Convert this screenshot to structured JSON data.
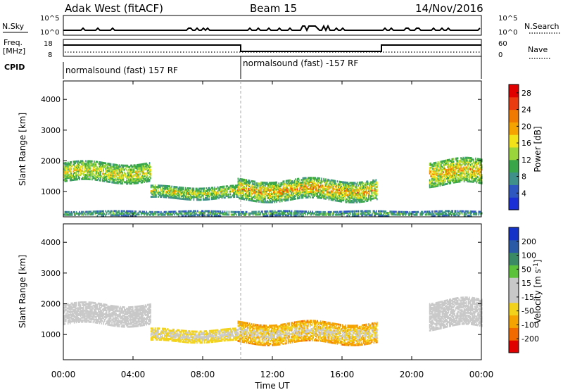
{
  "header": {
    "station": "Adak West (fitACF)",
    "beam": "Beam 15",
    "date": "14/Nov/2016"
  },
  "strip_labels": {
    "nsky": "N.Sky",
    "nsearch": "N.Search",
    "freq_line1": "Freq.",
    "freq_line2": "[MHz]",
    "nave": "Nave",
    "cpid": "CPID"
  },
  "strip_ticks": {
    "nsky_top": "10^5",
    "nsky_bottom": "10^0",
    "freq_top": "18",
    "freq_bottom": "8",
    "nave_top": "60",
    "nave_bottom": "0"
  },
  "cpid_segments": [
    {
      "label": "normalsound (fast) 157 RF"
    },
    {
      "label": "normalsound (fast) -157 RF"
    }
  ],
  "colors": {
    "power_scale": [
      "#1a2fd6",
      "#2f57c0",
      "#3f8f8a",
      "#3aa64a",
      "#9bd53c",
      "#f2e21a",
      "#f4a300",
      "#f07a00",
      "#ea3a0f",
      "#e00000"
    ],
    "velocity_scale": [
      "#1432c8",
      "#2a5aa6",
      "#3a8a66",
      "#5cc23a",
      "#c8c8c8",
      "#c8c8c8",
      "#f2d21a",
      "#f4a300",
      "#f06a00",
      "#e00000"
    ]
  },
  "chart_data": [
    {
      "type": "heatmap",
      "title": "Power",
      "ylabel": "Slant Range [km]",
      "xlabel": "Time UT",
      "x_ticks": [
        "00:00",
        "04:00",
        "08:00",
        "12:00",
        "16:00",
        "20:00",
        "00:00"
      ],
      "x_range_hours": [
        0,
        24
      ],
      "y_ticks": [
        1000,
        2000,
        3000,
        4000
      ],
      "y_range_km": [
        180,
        4600
      ],
      "colorbar_label": "Power [dB]",
      "colorbar_ticks": [
        4,
        8,
        12,
        16,
        20,
        24,
        28
      ],
      "colorbar_range": [
        0,
        30
      ],
      "mode_change_hour": 10,
      "regions": [
        {
          "t0": 0.0,
          "t1": 5.0,
          "r0": 1300,
          "r1": 1900,
          "min": 6,
          "max": 22
        },
        {
          "t0": 5.0,
          "t1": 10.0,
          "r0": 750,
          "r1": 1150,
          "min": 4,
          "max": 22
        },
        {
          "t0": 10.0,
          "t1": 18.0,
          "r0": 700,
          "r1": 1350,
          "min": 4,
          "max": 28
        },
        {
          "t0": 21.0,
          "t1": 24.0,
          "r0": 1200,
          "r1": 2000,
          "min": 6,
          "max": 26
        },
        {
          "t0": 0.0,
          "t1": 24.0,
          "r0": 180,
          "r1": 320,
          "min": 2,
          "max": 16
        }
      ]
    },
    {
      "type": "heatmap",
      "title": "Velocity",
      "ylabel": "Slant Range [km]",
      "xlabel": "Time UT",
      "x_ticks": [
        "00:00",
        "04:00",
        "08:00",
        "12:00",
        "16:00",
        "20:00",
        "00:00"
      ],
      "x_range_hours": [
        0,
        24
      ],
      "y_ticks": [
        1000,
        2000,
        3000,
        4000
      ],
      "y_range_km": [
        180,
        4600
      ],
      "colorbar_label": "Velocity [m s-1]",
      "colorbar_ticks": [
        "200",
        "100",
        "50",
        "15",
        "-15",
        "-50",
        "-100",
        "-200"
      ],
      "colorbar_range": [
        -250,
        250
      ],
      "mode_change_hour": 10,
      "regions": [
        {
          "t0": 0.0,
          "t1": 5.0,
          "r0": 1300,
          "r1": 1950,
          "min": -15,
          "max": 15
        },
        {
          "t0": 5.0,
          "t1": 10.0,
          "r0": 750,
          "r1": 1150,
          "min": -120,
          "max": 30
        },
        {
          "t0": 10.0,
          "t1": 18.0,
          "r0": 700,
          "r1": 1350,
          "min": -200,
          "max": 60
        },
        {
          "t0": 21.0,
          "t1": 24.0,
          "r0": 1200,
          "r1": 2100,
          "min": -15,
          "max": 15
        }
      ]
    }
  ]
}
